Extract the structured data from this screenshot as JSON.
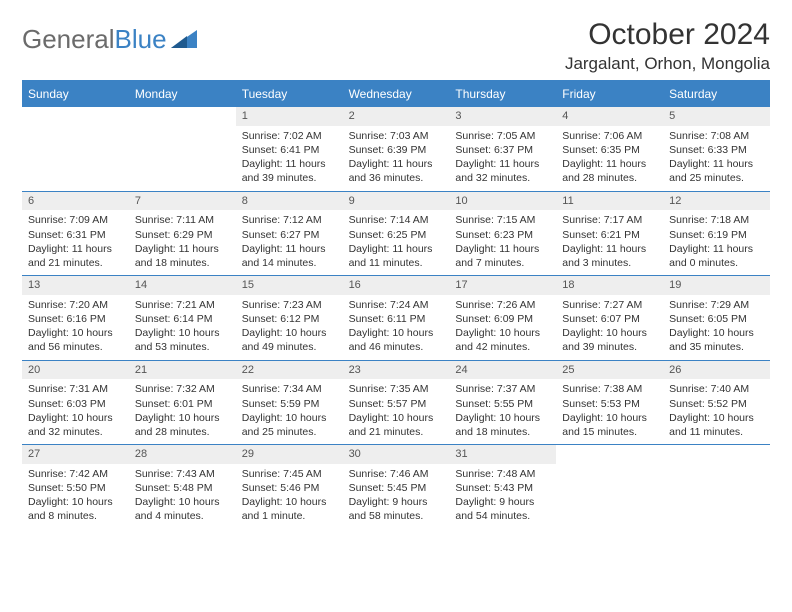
{
  "logo": {
    "text1": "General",
    "text2": "Blue"
  },
  "title": "October 2024",
  "location": "Jargalant, Orhon, Mongolia",
  "colors": {
    "brand": "#3b82c4",
    "header_bg": "#3b82c4",
    "header_text": "#ffffff",
    "daynum_bg": "#eeeeee",
    "text": "#333333",
    "cell_border": "#3b82c4"
  },
  "day_labels": [
    "Sunday",
    "Monday",
    "Tuesday",
    "Wednesday",
    "Thursday",
    "Friday",
    "Saturday"
  ],
  "leading_empty": 2,
  "days": [
    {
      "n": 1,
      "sunrise": "7:02 AM",
      "sunset": "6:41 PM",
      "daylight": "11 hours and 39 minutes."
    },
    {
      "n": 2,
      "sunrise": "7:03 AM",
      "sunset": "6:39 PM",
      "daylight": "11 hours and 36 minutes."
    },
    {
      "n": 3,
      "sunrise": "7:05 AM",
      "sunset": "6:37 PM",
      "daylight": "11 hours and 32 minutes."
    },
    {
      "n": 4,
      "sunrise": "7:06 AM",
      "sunset": "6:35 PM",
      "daylight": "11 hours and 28 minutes."
    },
    {
      "n": 5,
      "sunrise": "7:08 AM",
      "sunset": "6:33 PM",
      "daylight": "11 hours and 25 minutes."
    },
    {
      "n": 6,
      "sunrise": "7:09 AM",
      "sunset": "6:31 PM",
      "daylight": "11 hours and 21 minutes."
    },
    {
      "n": 7,
      "sunrise": "7:11 AM",
      "sunset": "6:29 PM",
      "daylight": "11 hours and 18 minutes."
    },
    {
      "n": 8,
      "sunrise": "7:12 AM",
      "sunset": "6:27 PM",
      "daylight": "11 hours and 14 minutes."
    },
    {
      "n": 9,
      "sunrise": "7:14 AM",
      "sunset": "6:25 PM",
      "daylight": "11 hours and 11 minutes."
    },
    {
      "n": 10,
      "sunrise": "7:15 AM",
      "sunset": "6:23 PM",
      "daylight": "11 hours and 7 minutes."
    },
    {
      "n": 11,
      "sunrise": "7:17 AM",
      "sunset": "6:21 PM",
      "daylight": "11 hours and 3 minutes."
    },
    {
      "n": 12,
      "sunrise": "7:18 AM",
      "sunset": "6:19 PM",
      "daylight": "11 hours and 0 minutes."
    },
    {
      "n": 13,
      "sunrise": "7:20 AM",
      "sunset": "6:16 PM",
      "daylight": "10 hours and 56 minutes."
    },
    {
      "n": 14,
      "sunrise": "7:21 AM",
      "sunset": "6:14 PM",
      "daylight": "10 hours and 53 minutes."
    },
    {
      "n": 15,
      "sunrise": "7:23 AM",
      "sunset": "6:12 PM",
      "daylight": "10 hours and 49 minutes."
    },
    {
      "n": 16,
      "sunrise": "7:24 AM",
      "sunset": "6:11 PM",
      "daylight": "10 hours and 46 minutes."
    },
    {
      "n": 17,
      "sunrise": "7:26 AM",
      "sunset": "6:09 PM",
      "daylight": "10 hours and 42 minutes."
    },
    {
      "n": 18,
      "sunrise": "7:27 AM",
      "sunset": "6:07 PM",
      "daylight": "10 hours and 39 minutes."
    },
    {
      "n": 19,
      "sunrise": "7:29 AM",
      "sunset": "6:05 PM",
      "daylight": "10 hours and 35 minutes."
    },
    {
      "n": 20,
      "sunrise": "7:31 AM",
      "sunset": "6:03 PM",
      "daylight": "10 hours and 32 minutes."
    },
    {
      "n": 21,
      "sunrise": "7:32 AM",
      "sunset": "6:01 PM",
      "daylight": "10 hours and 28 minutes."
    },
    {
      "n": 22,
      "sunrise": "7:34 AM",
      "sunset": "5:59 PM",
      "daylight": "10 hours and 25 minutes."
    },
    {
      "n": 23,
      "sunrise": "7:35 AM",
      "sunset": "5:57 PM",
      "daylight": "10 hours and 21 minutes."
    },
    {
      "n": 24,
      "sunrise": "7:37 AM",
      "sunset": "5:55 PM",
      "daylight": "10 hours and 18 minutes."
    },
    {
      "n": 25,
      "sunrise": "7:38 AM",
      "sunset": "5:53 PM",
      "daylight": "10 hours and 15 minutes."
    },
    {
      "n": 26,
      "sunrise": "7:40 AM",
      "sunset": "5:52 PM",
      "daylight": "10 hours and 11 minutes."
    },
    {
      "n": 27,
      "sunrise": "7:42 AM",
      "sunset": "5:50 PM",
      "daylight": "10 hours and 8 minutes."
    },
    {
      "n": 28,
      "sunrise": "7:43 AM",
      "sunset": "5:48 PM",
      "daylight": "10 hours and 4 minutes."
    },
    {
      "n": 29,
      "sunrise": "7:45 AM",
      "sunset": "5:46 PM",
      "daylight": "10 hours and 1 minute."
    },
    {
      "n": 30,
      "sunrise": "7:46 AM",
      "sunset": "5:45 PM",
      "daylight": "9 hours and 58 minutes."
    },
    {
      "n": 31,
      "sunrise": "7:48 AM",
      "sunset": "5:43 PM",
      "daylight": "9 hours and 54 minutes."
    }
  ],
  "labels": {
    "sunrise": "Sunrise: ",
    "sunset": "Sunset: ",
    "daylight": "Daylight: "
  }
}
